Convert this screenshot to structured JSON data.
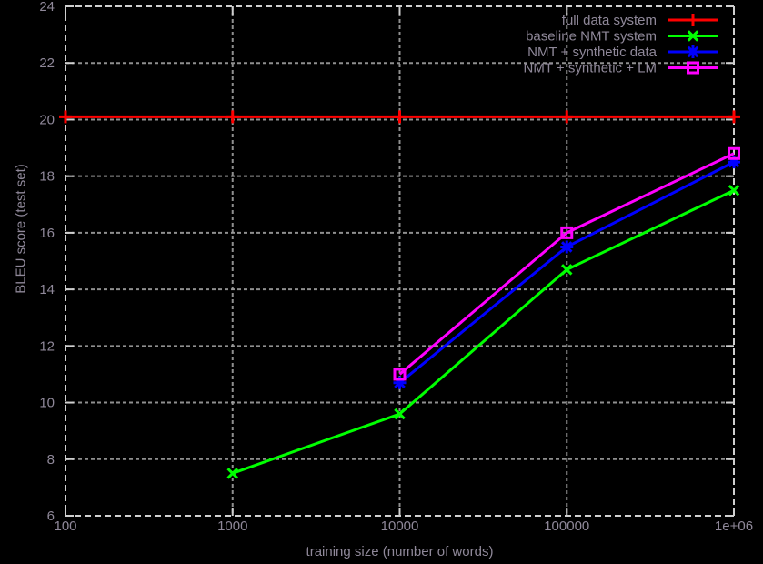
{
  "window": {
    "background_color": "#000000",
    "text_color": "#8f8899",
    "grid_color": "#9f9f9f",
    "border_color": "#cfcfcf"
  },
  "chart_data": {
    "type": "line",
    "title": "",
    "xlabel": "training size (number of words)",
    "ylabel": "BLEU score (test set)",
    "x_scale": "log10",
    "x_range": [
      100,
      1000000
    ],
    "x_ticks": [
      100,
      1000,
      10000,
      100000,
      1000000
    ],
    "x_tick_labels": [
      "100",
      "1000",
      "10000",
      "100000",
      "1e+06"
    ],
    "ylim": [
      6,
      24
    ],
    "y_tick_step": 2,
    "y_ticks": [
      6,
      8,
      10,
      12,
      14,
      16,
      18,
      20,
      22,
      24
    ],
    "grid": true,
    "legend_position": "top-right-inside",
    "series": [
      {
        "name": "full data system",
        "color": "#ff0000",
        "marker": "plus",
        "x": [
          100,
          1000,
          10000,
          100000,
          1000000
        ],
        "y": [
          20.1,
          20.1,
          20.1,
          20.1,
          20.1
        ]
      },
      {
        "name": "baseline NMT system",
        "color": "#00ff00",
        "marker": "cross",
        "x": [
          1000,
          10000,
          100000,
          1000000
        ],
        "y": [
          7.5,
          9.6,
          14.7,
          17.5
        ]
      },
      {
        "name": "NMT + synthetic data",
        "color": "#0000ff",
        "marker": "asterisk",
        "x": [
          10000,
          100000,
          1000000
        ],
        "y": [
          10.7,
          15.5,
          18.5
        ]
      },
      {
        "name": "NMT + synthetic + LM",
        "color": "#ff00ff",
        "marker": "square-open",
        "x": [
          10000,
          100000,
          1000000
        ],
        "y": [
          11.0,
          16.0,
          18.8
        ]
      }
    ]
  },
  "layout_note": "black-background gnuplot-style line chart, legend inside top-right"
}
